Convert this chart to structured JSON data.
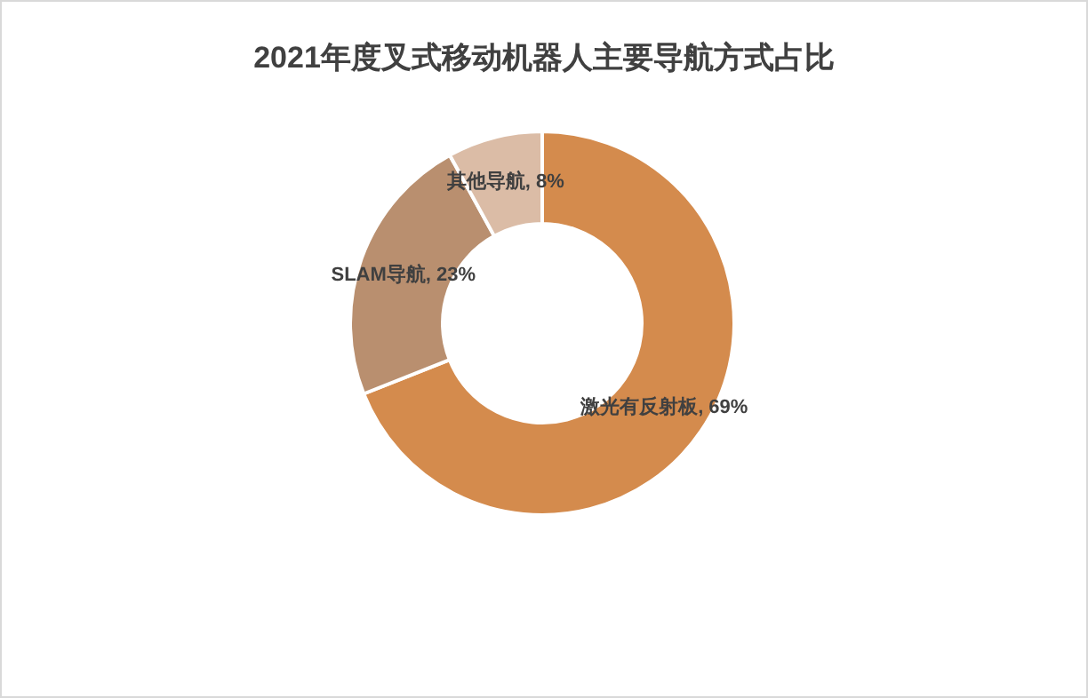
{
  "chart_data": {
    "type": "donut",
    "title": "2021年度叉式移动机器人主要导航方式占比",
    "categories": [
      "激光有反射板",
      "SLAM导航",
      "其他导航"
    ],
    "values": [
      69,
      23,
      8
    ],
    "colors": [
      "#d48b4d",
      "#b98f6f",
      "#dbbca6"
    ],
    "value_labels": [
      ", 69%",
      ", 23%",
      ", 8%"
    ],
    "legend": false
  }
}
